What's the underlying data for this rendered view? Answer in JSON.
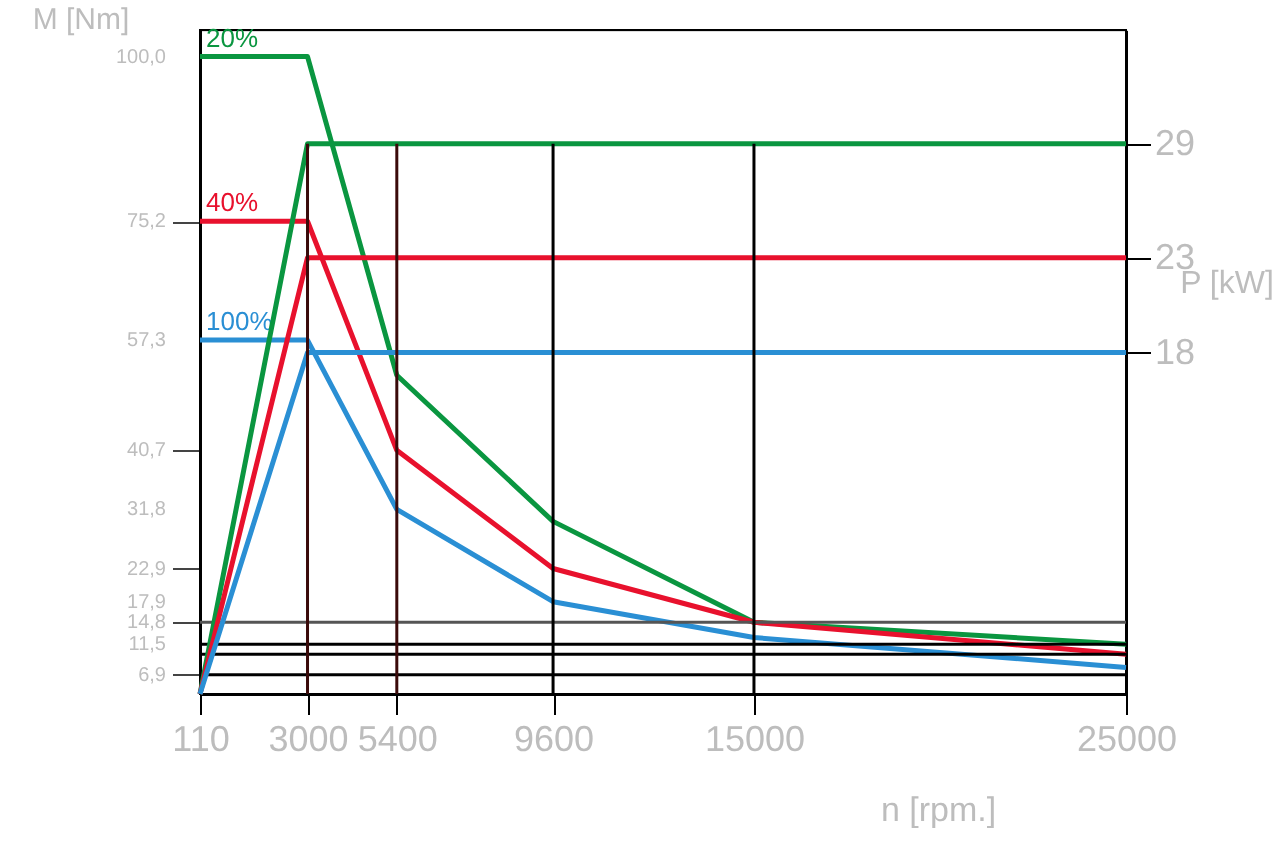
{
  "chart_data": {
    "type": "line",
    "xlabel": "n [rpm.]",
    "ylabel": "M [Nm]",
    "y2label": "P [kW]",
    "xlim": [
      110,
      25000
    ],
    "xticks": [
      110,
      3000,
      5400,
      9600,
      15000,
      25000
    ],
    "ylim": [
      4,
      104
    ],
    "yticks": [
      {
        "value": 6.9,
        "label": "6,9"
      },
      {
        "value": 11.5,
        "label": "11,5"
      },
      {
        "value": 14.8,
        "label": "14,8"
      },
      {
        "value": 17.9,
        "label": "17,9"
      },
      {
        "value": 22.9,
        "label": "22,9"
      },
      {
        "value": 31.8,
        "label": "31,8"
      },
      {
        "value": 40.7,
        "label": "40,7"
      },
      {
        "value": 57.3,
        "label": "57,3"
      },
      {
        "value": 75.2,
        "label": "75,2"
      },
      {
        "value": 100,
        "label": "100,0"
      }
    ],
    "y2lim": [
      0,
      35
    ],
    "y2ticks": [
      18,
      23,
      29
    ],
    "series": [
      {
        "name": "20%",
        "color": "#0a9640",
        "x": [
          110,
          3000,
          5400,
          9600,
          15000,
          25000
        ],
        "values": [
          100,
          100,
          52,
          30,
          14.8,
          11.5
        ]
      },
      {
        "name": "40%",
        "color": "#e8112d",
        "x": [
          110,
          3000,
          5400,
          9600,
          15000,
          25000
        ],
        "values": [
          75.2,
          75.2,
          40.7,
          22.9,
          14.8,
          10
        ]
      },
      {
        "name": "100%",
        "color": "#2a8fd4",
        "x": [
          110,
          3000,
          5400,
          9600,
          15000,
          25000
        ],
        "values": [
          57.3,
          57.3,
          31.8,
          17.9,
          12.5,
          8
        ]
      },
      {
        "color": "#0a9640",
        "axis": "y2",
        "x": [
          110,
          3000,
          25000
        ],
        "values": [
          0,
          29,
          29
        ]
      },
      {
        "color": "#e8112d",
        "axis": "y2",
        "x": [
          110,
          3000,
          25000
        ],
        "values": [
          0,
          23,
          23
        ]
      },
      {
        "color": "#2a8fd4",
        "axis": "y2",
        "x": [
          110,
          3000,
          25000
        ],
        "values": [
          0,
          18,
          18
        ]
      }
    ],
    "ref_lines": [
      {
        "axis": "x",
        "value": 3000,
        "color": "#3a0a0a"
      },
      {
        "axis": "x",
        "value": 5400,
        "color": "#3a0a0a"
      },
      {
        "axis": "x",
        "value": 9600,
        "color": "#000000"
      },
      {
        "axis": "x",
        "value": 15000,
        "color": "#000000"
      },
      {
        "axis": "y",
        "value": 14.8,
        "color": "#555555"
      },
      {
        "axis": "y",
        "value": 11.5,
        "color": "#000000"
      },
      {
        "axis": "y",
        "value": 10,
        "color": "#000000"
      },
      {
        "axis": "y",
        "value": 6.9,
        "color": "#000000"
      }
    ],
    "grid": false,
    "line_style": "solid",
    "marker": "none"
  }
}
